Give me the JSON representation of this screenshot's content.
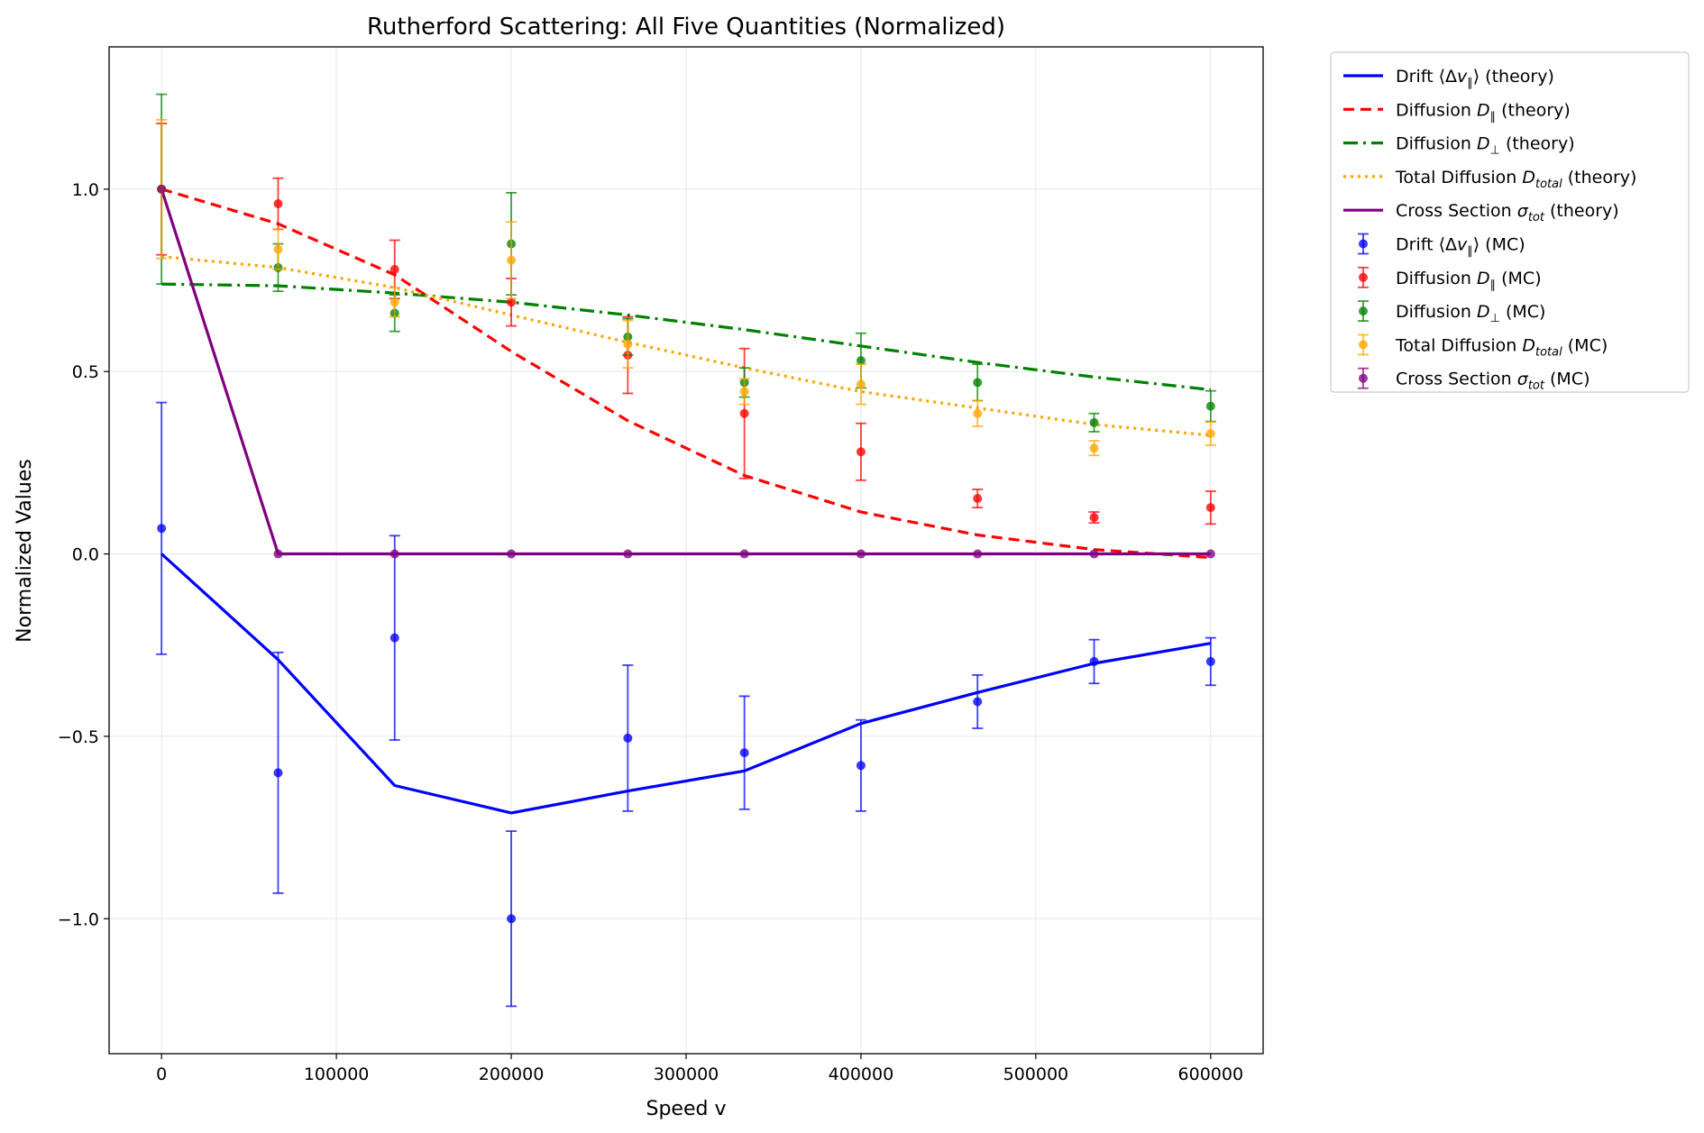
{
  "chart_data": {
    "type": "line",
    "title": "Rutherford Scattering: All Five Quantities (Normalized)",
    "xlabel": "Speed v",
    "ylabel": "Normalized Values",
    "xlim": [
      -30000,
      630000
    ],
    "ylim": [
      -1.37,
      1.39
    ],
    "xticks": [
      0,
      100000,
      200000,
      300000,
      400000,
      500000,
      600000
    ],
    "xtick_labels": [
      "0",
      "100000",
      "200000",
      "300000",
      "400000",
      "500000",
      "600000"
    ],
    "yticks": [
      -1.0,
      -0.5,
      0.0,
      0.5,
      1.0
    ],
    "ytick_labels": [
      "−1.0",
      "−0.5",
      "0.0",
      "0.5",
      "1.0"
    ],
    "grid": true,
    "legend_position": "outside-right-top",
    "x": [
      0,
      66667,
      133333,
      200000,
      266667,
      333333,
      400000,
      466667,
      533333,
      600000
    ],
    "series": [
      {
        "key": "drift",
        "color": "#0000ff",
        "dash": "",
        "theory_label": {
          "pre": "Drift ⟨Δ",
          "math": "v",
          "sub": "∥",
          "post": "⟩ (theory)"
        },
        "mc_label": {
          "pre": "Drift ⟨Δ",
          "math": "v",
          "sub": "∥",
          "post": "⟩ (MC)"
        },
        "theory": [
          0.0,
          -0.29,
          -0.635,
          -0.71,
          -0.65,
          -0.595,
          -0.465,
          -0.38,
          -0.3,
          -0.245
        ],
        "mc": [
          0.07,
          -0.6,
          -0.23,
          -1.0,
          -0.505,
          -0.545,
          -0.58,
          -0.405,
          -0.295,
          -0.295
        ],
        "err": [
          0.345,
          0.33,
          0.28,
          0.24,
          0.2,
          0.155,
          0.125,
          0.073,
          0.06,
          0.065
        ]
      },
      {
        "key": "d_par",
        "color": "#ff0000",
        "dash": "12,7",
        "theory_label": {
          "pre": "Diffusion ",
          "math": "D",
          "sub": "∥",
          "post": " (theory)"
        },
        "mc_label": {
          "pre": "Diffusion ",
          "math": "D",
          "sub": "∥",
          "post": " (MC)"
        },
        "theory": [
          1.0,
          0.905,
          0.765,
          0.555,
          0.365,
          0.215,
          0.115,
          0.052,
          0.012,
          -0.01
        ],
        "mc": [
          1.0,
          0.96,
          0.78,
          0.69,
          0.545,
          0.385,
          0.28,
          0.152,
          0.1,
          0.127
        ],
        "err": [
          0.18,
          0.07,
          0.08,
          0.065,
          0.105,
          0.178,
          0.078,
          0.025,
          0.015,
          0.045
        ]
      },
      {
        "key": "d_perp",
        "color": "#008000",
        "dash": "16,6,3,6",
        "theory_label": {
          "pre": "Diffusion ",
          "math": "D",
          "sub": "⊥",
          "post": " (theory)"
        },
        "mc_label": {
          "pre": "Diffusion ",
          "math": "D",
          "sub": "⊥",
          "post": " (MC)"
        },
        "theory": [
          0.74,
          0.735,
          0.715,
          0.69,
          0.655,
          0.615,
          0.57,
          0.525,
          0.485,
          0.45
        ],
        "mc": [
          1.0,
          0.785,
          0.66,
          0.85,
          0.595,
          0.47,
          0.53,
          0.47,
          0.36,
          0.405
        ],
        "err": [
          0.26,
          0.065,
          0.05,
          0.14,
          0.05,
          0.04,
          0.075,
          0.05,
          0.025,
          0.042
        ]
      },
      {
        "key": "d_total",
        "color": "#ffa500",
        "dash": "3,5",
        "theory_label": {
          "pre": "Total Diffusion ",
          "math": "D",
          "sub": "total",
          "post": " (theory)"
        },
        "mc_label": {
          "pre": "Total Diffusion ",
          "math": "D",
          "sub": "total",
          "post": " (MC)"
        },
        "theory": [
          0.815,
          0.785,
          0.73,
          0.655,
          0.58,
          0.51,
          0.445,
          0.4,
          0.355,
          0.325
        ],
        "mc": [
          1.0,
          0.835,
          0.69,
          0.805,
          0.575,
          0.445,
          0.465,
          0.385,
          0.29,
          0.33
        ],
        "err": [
          0.19,
          0.055,
          0.04,
          0.105,
          0.065,
          0.035,
          0.055,
          0.035,
          0.02,
          0.032
        ]
      },
      {
        "key": "sigma",
        "color": "#800080",
        "dash": "",
        "theory_label": {
          "pre": "Cross Section ",
          "math": "σ",
          "sub": "tot",
          "post": " (theory)"
        },
        "mc_label": {
          "pre": "Cross Section ",
          "math": "σ",
          "sub": "tot",
          "post": " (MC)"
        },
        "theory": [
          1.0,
          0.0,
          0.0,
          0.0,
          0.0,
          0.0,
          0.0,
          0.0,
          0.0,
          0.0
        ],
        "mc": [
          1.0,
          0.0,
          0.0,
          0.0,
          0.0,
          0.0,
          0.0,
          0.0,
          0.0,
          0.0
        ],
        "err": [
          0.0,
          0.0,
          0.0,
          0.0,
          0.0,
          0.0,
          0.0,
          0.0,
          0.0,
          0.0
        ]
      }
    ]
  }
}
